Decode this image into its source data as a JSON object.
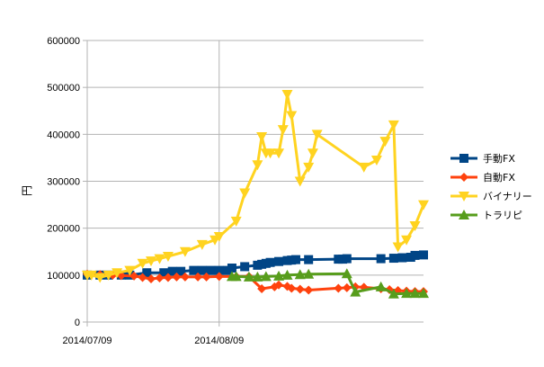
{
  "chart_data": {
    "type": "line",
    "title": "",
    "xlabel": "",
    "ylabel": "円",
    "ylim": [
      0,
      600000
    ],
    "yticks": [
      "0",
      "100000",
      "200000",
      "300000",
      "400000",
      "500000",
      "600000"
    ],
    "xlim": [
      "2014-07-09",
      "2014-09-26"
    ],
    "xticks": [
      "2014/07/09",
      "2014/08/09"
    ],
    "grid": true,
    "legend_position": "right",
    "series": [
      {
        "name": "手動FX",
        "color": "#004586",
        "marker": "square",
        "x": [
          "2014-07-09",
          "2014-07-12",
          "2014-07-14",
          "2014-07-17",
          "2014-07-19",
          "2014-07-23",
          "2014-07-27",
          "2014-07-29",
          "2014-07-31",
          "2014-08-03",
          "2014-08-05",
          "2014-08-07",
          "2014-08-09",
          "2014-08-11",
          "2014-08-12",
          "2014-08-15",
          "2014-08-18",
          "2014-08-19",
          "2014-08-20",
          "2014-08-21",
          "2014-08-23",
          "2014-08-25",
          "2014-08-26",
          "2014-08-27",
          "2014-08-30",
          "2014-09-06",
          "2014-09-07",
          "2014-09-08",
          "2014-09-16",
          "2014-09-19",
          "2014-09-21",
          "2014-09-23",
          "2014-09-24",
          "2014-09-26"
        ],
        "values": [
          100000,
          100000,
          100000,
          100000,
          100000,
          105000,
          105000,
          108000,
          108000,
          110000,
          110000,
          110000,
          110000,
          110000,
          115000,
          118000,
          121000,
          123000,
          125000,
          127000,
          129000,
          131000,
          132000,
          133000,
          133000,
          134000,
          134000,
          135000,
          135000,
          136000,
          137000,
          138000,
          142000,
          143000
        ]
      },
      {
        "name": "自動FX",
        "color": "#ff420e",
        "marker": "diamond",
        "x": [
          "2014-07-09",
          "2014-07-12",
          "2014-07-15",
          "2014-07-17",
          "2014-07-20",
          "2014-07-22",
          "2014-07-24",
          "2014-07-26",
          "2014-07-28",
          "2014-07-30",
          "2014-08-01",
          "2014-08-04",
          "2014-08-06",
          "2014-08-09",
          "2014-08-13",
          "2014-08-16",
          "2014-08-19",
          "2014-08-22",
          "2014-08-23",
          "2014-08-25",
          "2014-08-26",
          "2014-08-28",
          "2014-08-30",
          "2014-09-06",
          "2014-09-08",
          "2014-09-10",
          "2014-09-12",
          "2014-09-16",
          "2014-09-18",
          "2014-09-20",
          "2014-09-22",
          "2014-09-24",
          "2014-09-26"
        ],
        "values": [
          102000,
          101000,
          100000,
          99000,
          98000,
          95000,
          92000,
          94000,
          95000,
          96000,
          96000,
          96000,
          96000,
          97000,
          97000,
          97000,
          71000,
          75000,
          79000,
          76000,
          72000,
          70000,
          68000,
          72000,
          73000,
          75000,
          74000,
          71000,
          69000,
          67000,
          66000,
          65000,
          65000
        ]
      },
      {
        "name": "バイナリー",
        "color": "#ffd320",
        "marker": "triangle-down",
        "x": [
          "2014-07-09",
          "2014-07-10",
          "2014-07-12",
          "2014-07-14",
          "2014-07-16",
          "2014-07-19",
          "2014-07-22",
          "2014-07-24",
          "2014-07-26",
          "2014-07-28",
          "2014-08-01",
          "2014-08-05",
          "2014-08-08",
          "2014-08-09",
          "2014-08-13",
          "2014-08-15",
          "2014-08-18",
          "2014-08-19",
          "2014-08-20",
          "2014-08-21",
          "2014-08-23",
          "2014-08-24",
          "2014-08-25",
          "2014-08-26",
          "2014-08-28",
          "2014-08-30",
          "2014-08-31",
          "2014-09-01",
          "2014-09-12",
          "2014-09-15",
          "2014-09-17",
          "2014-09-19",
          "2014-09-20",
          "2014-09-22",
          "2014-09-24",
          "2014-09-26"
        ],
        "values": [
          100000,
          100000,
          95000,
          100000,
          105000,
          110000,
          125000,
          130000,
          135000,
          140000,
          150000,
          165000,
          175000,
          182000,
          215000,
          275000,
          335000,
          395000,
          360000,
          360000,
          360000,
          410000,
          485000,
          440000,
          300000,
          330000,
          360000,
          400000,
          330000,
          345000,
          385000,
          420000,
          160000,
          175000,
          205000,
          250000
        ]
      },
      {
        "name": "トラリピ",
        "color": "#579d1c",
        "marker": "triangle",
        "x": [
          "2014-08-12",
          "2014-08-13",
          "2014-08-16",
          "2014-08-18",
          "2014-08-20",
          "2014-08-23",
          "2014-08-25",
          "2014-08-28",
          "2014-08-30",
          "2014-09-08",
          "2014-09-10",
          "2014-09-16",
          "2014-09-19",
          "2014-09-22",
          "2014-09-24",
          "2014-09-26"
        ],
        "values": [
          97000,
          97000,
          96000,
          96000,
          97000,
          98000,
          100000,
          101000,
          102000,
          103000,
          64000,
          75000,
          60000,
          61000,
          61000,
          61000
        ]
      }
    ]
  }
}
